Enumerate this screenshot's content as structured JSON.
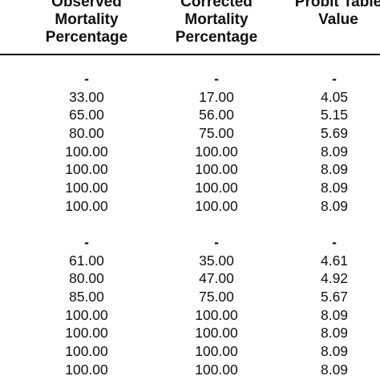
{
  "headers": [
    [
      "Observed",
      "Mortality",
      "Percentage"
    ],
    [
      "Corrected",
      "Mortality",
      "Percentage"
    ],
    [
      "Probit Table",
      "Value"
    ]
  ],
  "groups": [
    {
      "dash": [
        "-",
        "-",
        "-"
      ],
      "rows": [
        [
          "33.00",
          "17.00",
          "4.05"
        ],
        [
          "65.00",
          "56.00",
          "5.15"
        ],
        [
          "80.00",
          "75.00",
          "5.69"
        ],
        [
          "100.00",
          "100.00",
          "8.09"
        ],
        [
          "100.00",
          "100.00",
          "8.09"
        ],
        [
          "100.00",
          "100.00",
          "8.09"
        ],
        [
          "100.00",
          "100.00",
          "8.09"
        ]
      ]
    },
    {
      "dash": [
        "-",
        "-",
        "-"
      ],
      "rows": [
        [
          "61.00",
          "35.00",
          "4.61"
        ],
        [
          "80.00",
          "47.00",
          "4.92"
        ],
        [
          "85.00",
          "75.00",
          "5.67"
        ],
        [
          "100.00",
          "100.00",
          "8.09"
        ],
        [
          "100.00",
          "100.00",
          "8.09"
        ],
        [
          "100.00",
          "100.00",
          "8.09"
        ],
        [
          "100.00",
          "100.00",
          "8.09"
        ]
      ]
    }
  ]
}
